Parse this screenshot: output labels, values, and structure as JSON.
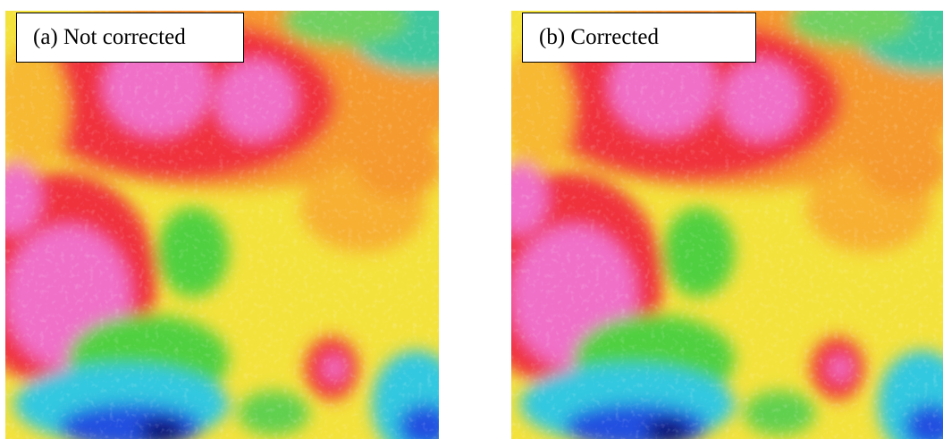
{
  "panels": [
    {
      "label": "(a) Not corrected"
    },
    {
      "label": "(b) Corrected"
    }
  ]
}
